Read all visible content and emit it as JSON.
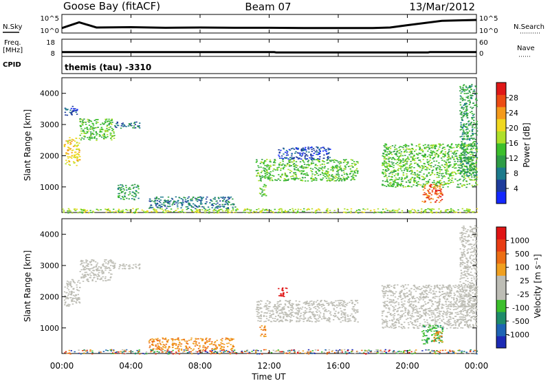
{
  "header": {
    "station": "Goose Bay (fitACF)",
    "beam": "Beam 07",
    "date": "13/Mar/2012"
  },
  "side_labels": {
    "nsky": "N.Sky",
    "freq_line1": "Freq.",
    "freq_line2": "[MHz]",
    "cpid": "CPID",
    "nsearch": "N.Search",
    "nave": "Nave"
  },
  "cpid_text": "themis (tau) -3310",
  "x_axis": {
    "label": "Time UT",
    "ticks": [
      "00:00",
      "04:00",
      "08:00",
      "12:00",
      "16:00",
      "20:00",
      "00:00"
    ],
    "range_hours": [
      0,
      24
    ]
  },
  "chart_data": [
    {
      "type": "line",
      "name": "noise_panel",
      "y_left_ticks": [
        "10^5",
        "10^0"
      ],
      "y_right_ticks": [
        "10^5",
        "10^0"
      ],
      "series": [
        {
          "label": "N.Sky",
          "x": [
            0,
            1,
            2,
            4,
            6,
            8,
            10,
            12,
            14,
            16,
            18,
            19,
            20,
            22,
            24
          ],
          "y": [
            1.0,
            3.0,
            1.2,
            1.3,
            1.1,
            1.2,
            1.1,
            1.1,
            1.0,
            1.0,
            1.0,
            1.2,
            2.0,
            3.5,
            3.8
          ]
        }
      ]
    },
    {
      "type": "line",
      "name": "freq_nave_panel",
      "y_left_ticks": [
        "18",
        "8"
      ],
      "y_right_ticks": [
        "60",
        "0"
      ],
      "series": [
        {
          "label": "Freq. [MHz]",
          "x": [
            0,
            12.3,
            12.4,
            21.2,
            21.3,
            24
          ],
          "y": [
            10.0,
            10.0,
            9.8,
            9.8,
            10.0,
            10.0
          ]
        }
      ]
    },
    {
      "type": "heatmap",
      "name": "power_panel",
      "ylabel": "Slant Range [km]",
      "ylim": [
        180,
        4500
      ],
      "y_ticks": [
        1000,
        2000,
        3000,
        4000
      ],
      "colorbar": {
        "label": "Power [dB]",
        "ticks": [
          "28",
          "24",
          "20",
          "16",
          "12",
          "8",
          "4"
        ],
        "colors": [
          "#1428ff",
          "#1e3c9c",
          "#1c7a8c",
          "#2e9c46",
          "#3cbf2c",
          "#aee02a",
          "#f0d820",
          "#f49a1c",
          "#ec4c14",
          "#e01818"
        ]
      },
      "regions": [
        {
          "t": [
            0.1,
            1.0
          ],
          "r": [
            1700,
            2600
          ],
          "level": 0.75
        },
        {
          "t": [
            1.0,
            3.0
          ],
          "r": [
            2500,
            3200
          ],
          "level": 0.45
        },
        {
          "t": [
            3.0,
            4.5
          ],
          "r": [
            2900,
            3100
          ],
          "level": 0.3
        },
        {
          "t": [
            0.1,
            0.9
          ],
          "r": [
            3300,
            3600
          ],
          "level": 0.2
        },
        {
          "t": [
            11.2,
            17.1
          ],
          "r": [
            1200,
            1900
          ],
          "level": 0.55
        },
        {
          "t": [
            11.4,
            11.8
          ],
          "r": [
            700,
            1100
          ],
          "level": 0.5
        },
        {
          "t": [
            12.5,
            15.5
          ],
          "r": [
            1900,
            2300
          ],
          "level": 0.15
        },
        {
          "t": [
            18.5,
            24.0
          ],
          "r": [
            1000,
            2400
          ],
          "level": 0.45
        },
        {
          "t": [
            20.8,
            22.0
          ],
          "r": [
            500,
            1100
          ],
          "level": 0.9
        },
        {
          "t": [
            23.0,
            24.0
          ],
          "r": [
            1300,
            4300
          ],
          "level": 0.35
        },
        {
          "t": [
            0.0,
            24.0
          ],
          "r": [
            180,
            320
          ],
          "level": 0.65
        },
        {
          "t": [
            3.2,
            4.4
          ],
          "r": [
            600,
            1100
          ],
          "level": 0.35
        },
        {
          "t": [
            5.0,
            10.0
          ],
          "r": [
            320,
            700
          ],
          "level": 0.3
        }
      ]
    },
    {
      "type": "heatmap",
      "name": "velocity_panel",
      "ylabel": "Slant Range [km]",
      "ylim": [
        180,
        4500
      ],
      "y_ticks": [
        1000,
        2000,
        3000,
        4000
      ],
      "colorbar": {
        "label": "Velocity [m s⁻¹]",
        "ticks": [
          "1000",
          "500",
          "100",
          "25",
          "-25",
          "-100",
          "-500",
          "-1000"
        ],
        "colors": [
          "#1c2ab4",
          "#1e64b4",
          "#1e8c6a",
          "#3cbf2c",
          "#bdbdb5",
          "#bdbdb5",
          "#f0a020",
          "#ec6e14",
          "#e83c14",
          "#e01414"
        ]
      },
      "regions": [
        {
          "t": [
            0.1,
            1.0
          ],
          "r": [
            1700,
            2600
          ],
          "vel": "ground"
        },
        {
          "t": [
            1.0,
            3.0
          ],
          "r": [
            2500,
            3200
          ],
          "vel": "ground"
        },
        {
          "t": [
            3.0,
            4.5
          ],
          "r": [
            2900,
            3100
          ],
          "vel": "ground"
        },
        {
          "t": [
            11.2,
            17.1
          ],
          "r": [
            1200,
            1900
          ],
          "vel": "ground"
        },
        {
          "t": [
            11.4,
            11.8
          ],
          "r": [
            700,
            1100
          ],
          "vel": "orange"
        },
        {
          "t": [
            12.5,
            13.0
          ],
          "r": [
            2000,
            2300
          ],
          "vel": "red"
        },
        {
          "t": [
            18.5,
            24.0
          ],
          "r": [
            1000,
            2400
          ],
          "vel": "ground"
        },
        {
          "t": [
            20.8,
            22.0
          ],
          "r": [
            500,
            1100
          ],
          "vel": "green"
        },
        {
          "t": [
            21.5,
            22.0
          ],
          "r": [
            550,
            900
          ],
          "vel": "orange"
        },
        {
          "t": [
            23.0,
            24.0
          ],
          "r": [
            1300,
            4300
          ],
          "vel": "ground"
        },
        {
          "t": [
            0.0,
            24.0
          ],
          "r": [
            180,
            320
          ],
          "vel": "mixed"
        },
        {
          "t": [
            5.0,
            10.0
          ],
          "r": [
            320,
            700
          ],
          "vel": "orange"
        }
      ]
    }
  ]
}
